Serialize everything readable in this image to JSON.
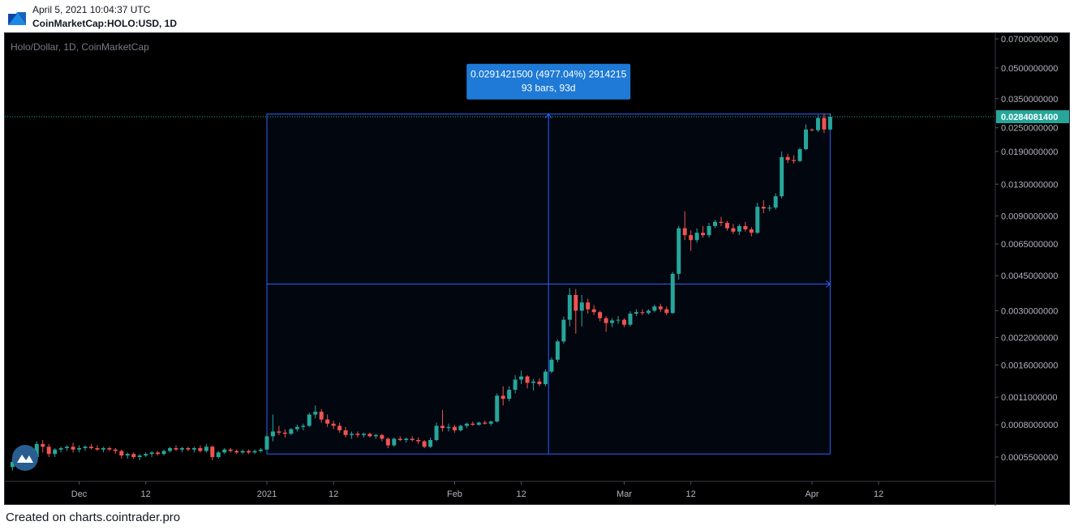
{
  "header": {
    "timestamp": "April 5, 2021 10:04:37 UTC",
    "symbol": "CoinMarketCap:HOLO:USD, 1D"
  },
  "footer": {
    "text": "Created on charts.cointrader.pro"
  },
  "chart_data": {
    "type": "candlestick",
    "title": "Holo/Dollar, 1D, CoinMarketCap",
    "scale": "log",
    "grid": false,
    "x_start_date": "2020-11-20",
    "y_ticks": [
      "0.0700000000",
      "0.0500000000",
      "0.0350000000",
      "0.0250000000",
      "0.0190000000",
      "0.0130000000",
      "0.0090000000",
      "0.0065000000",
      "0.0045000000",
      "0.0030000000",
      "0.0022000000",
      "0.0016000000",
      "0.0011000000",
      "0.0008000000",
      "0.0005500000"
    ],
    "x_ticks": [
      {
        "label": "Dec",
        "date": "2020-12-01"
      },
      {
        "label": "12",
        "date": "2020-12-12"
      },
      {
        "label": "2021",
        "date": "2021-01-01"
      },
      {
        "label": "12",
        "date": "2021-01-12"
      },
      {
        "label": "Feb",
        "date": "2021-02-01"
      },
      {
        "label": "12",
        "date": "2021-02-12"
      },
      {
        "label": "Mar",
        "date": "2021-03-01"
      },
      {
        "label": "12",
        "date": "2021-03-12"
      },
      {
        "label": "Apr",
        "date": "2021-04-01"
      },
      {
        "label": "12",
        "date": "2021-04-12"
      }
    ],
    "last_price": "0.0284081400",
    "measure": {
      "label_line1": "0.0291421500 (4977.04%) 2914215",
      "label_line2": "93 bars, 93d",
      "start_date": "2021-01-01",
      "end_date": "2021-04-04",
      "low": 0.00057,
      "high": 0.0293
    },
    "colors": {
      "up": "#26a69a",
      "down": "#ef5350",
      "measure": "#2962ff",
      "label_bg": "#1e7ad6",
      "last_price": "#26a69a",
      "axis_text": "#b2b5be"
    },
    "candles": [
      {
        "date": "2020-11-20",
        "o": 0.00049,
        "h": 0.00054,
        "l": 0.00047,
        "c": 0.00052
      },
      {
        "date": "2020-11-21",
        "o": 0.00052,
        "h": 0.00056,
        "l": 0.00049,
        "c": 0.00051
      },
      {
        "date": "2020-11-22",
        "o": 0.00051,
        "h": 0.00055,
        "l": 0.00048,
        "c": 0.00053
      },
      {
        "date": "2020-11-23",
        "o": 0.00053,
        "h": 0.00058,
        "l": 0.00051,
        "c": 0.00055
      },
      {
        "date": "2020-11-24",
        "o": 0.00055,
        "h": 0.00066,
        "l": 0.00053,
        "c": 0.00064
      },
      {
        "date": "2020-11-25",
        "o": 0.00064,
        "h": 0.00067,
        "l": 0.00058,
        "c": 0.00062
      },
      {
        "date": "2020-11-26",
        "o": 0.00062,
        "h": 0.00064,
        "l": 0.00055,
        "c": 0.00057
      },
      {
        "date": "2020-11-27",
        "o": 0.00057,
        "h": 0.00061,
        "l": 0.00055,
        "c": 0.0006
      },
      {
        "date": "2020-11-28",
        "o": 0.0006,
        "h": 0.00062,
        "l": 0.00058,
        "c": 0.00061
      },
      {
        "date": "2020-11-29",
        "o": 0.00061,
        "h": 0.00063,
        "l": 0.00059,
        "c": 0.00062
      },
      {
        "date": "2020-11-30",
        "o": 0.00062,
        "h": 0.00065,
        "l": 0.00058,
        "c": 0.0006
      },
      {
        "date": "2020-12-01",
        "o": 0.0006,
        "h": 0.00063,
        "l": 0.00058,
        "c": 0.00061
      },
      {
        "date": "2020-12-02",
        "o": 0.00061,
        "h": 0.00063,
        "l": 0.00059,
        "c": 0.00062
      },
      {
        "date": "2020-12-03",
        "o": 0.00062,
        "h": 0.00064,
        "l": 0.0006,
        "c": 0.00061
      },
      {
        "date": "2020-12-04",
        "o": 0.00061,
        "h": 0.00063,
        "l": 0.00059,
        "c": 0.0006
      },
      {
        "date": "2020-12-05",
        "o": 0.0006,
        "h": 0.00062,
        "l": 0.00058,
        "c": 0.00061
      },
      {
        "date": "2020-12-06",
        "o": 0.00061,
        "h": 0.00062,
        "l": 0.00059,
        "c": 0.0006
      },
      {
        "date": "2020-12-07",
        "o": 0.0006,
        "h": 0.00061,
        "l": 0.00057,
        "c": 0.00059
      },
      {
        "date": "2020-12-08",
        "o": 0.00059,
        "h": 0.0006,
        "l": 0.00054,
        "c": 0.00056
      },
      {
        "date": "2020-12-09",
        "o": 0.00056,
        "h": 0.00058,
        "l": 0.00054,
        "c": 0.00057
      },
      {
        "date": "2020-12-10",
        "o": 0.00057,
        "h": 0.00058,
        "l": 0.00054,
        "c": 0.00055
      },
      {
        "date": "2020-12-11",
        "o": 0.00055,
        "h": 0.00057,
        "l": 0.00053,
        "c": 0.00056
      },
      {
        "date": "2020-12-12",
        "o": 0.00056,
        "h": 0.00058,
        "l": 0.00055,
        "c": 0.00057
      },
      {
        "date": "2020-12-13",
        "o": 0.00057,
        "h": 0.00059,
        "l": 0.00055,
        "c": 0.00058
      },
      {
        "date": "2020-12-14",
        "o": 0.00058,
        "h": 0.00059,
        "l": 0.00056,
        "c": 0.00057
      },
      {
        "date": "2020-12-15",
        "o": 0.00057,
        "h": 0.0006,
        "l": 0.00056,
        "c": 0.00059
      },
      {
        "date": "2020-12-16",
        "o": 0.00059,
        "h": 0.00062,
        "l": 0.00058,
        "c": 0.00061
      },
      {
        "date": "2020-12-17",
        "o": 0.00061,
        "h": 0.00063,
        "l": 0.00059,
        "c": 0.0006
      },
      {
        "date": "2020-12-18",
        "o": 0.0006,
        "h": 0.00062,
        "l": 0.00058,
        "c": 0.00061
      },
      {
        "date": "2020-12-19",
        "o": 0.00061,
        "h": 0.00062,
        "l": 0.00059,
        "c": 0.0006
      },
      {
        "date": "2020-12-20",
        "o": 0.0006,
        "h": 0.00062,
        "l": 0.00058,
        "c": 0.00061
      },
      {
        "date": "2020-12-21",
        "o": 0.00061,
        "h": 0.00063,
        "l": 0.00058,
        "c": 0.00059
      },
      {
        "date": "2020-12-22",
        "o": 0.00059,
        "h": 0.00064,
        "l": 0.00058,
        "c": 0.00062
      },
      {
        "date": "2020-12-23",
        "o": 0.00062,
        "h": 0.00063,
        "l": 0.00053,
        "c": 0.00055
      },
      {
        "date": "2020-12-24",
        "o": 0.00055,
        "h": 0.00059,
        "l": 0.00054,
        "c": 0.00058
      },
      {
        "date": "2020-12-25",
        "o": 0.00058,
        "h": 0.00061,
        "l": 0.00057,
        "c": 0.0006
      },
      {
        "date": "2020-12-26",
        "o": 0.0006,
        "h": 0.00061,
        "l": 0.00058,
        "c": 0.00059
      },
      {
        "date": "2020-12-27",
        "o": 0.00059,
        "h": 0.0006,
        "l": 0.00057,
        "c": 0.00058
      },
      {
        "date": "2020-12-28",
        "o": 0.00058,
        "h": 0.0006,
        "l": 0.00057,
        "c": 0.00059
      },
      {
        "date": "2020-12-29",
        "o": 0.00059,
        "h": 0.0006,
        "l": 0.00057,
        "c": 0.00058
      },
      {
        "date": "2020-12-30",
        "o": 0.00058,
        "h": 0.0006,
        "l": 0.00057,
        "c": 0.00059
      },
      {
        "date": "2020-12-31",
        "o": 0.00059,
        "h": 0.00061,
        "l": 0.00058,
        "c": 0.0006
      },
      {
        "date": "2021-01-01",
        "o": 0.0006,
        "h": 0.00072,
        "l": 0.00059,
        "c": 0.0007
      },
      {
        "date": "2021-01-02",
        "o": 0.0007,
        "h": 0.0009,
        "l": 0.00066,
        "c": 0.00074
      },
      {
        "date": "2021-01-03",
        "o": 0.00074,
        "h": 0.00079,
        "l": 0.00071,
        "c": 0.00073
      },
      {
        "date": "2021-01-04",
        "o": 0.00073,
        "h": 0.00076,
        "l": 0.00069,
        "c": 0.00072
      },
      {
        "date": "2021-01-05",
        "o": 0.00072,
        "h": 0.00077,
        "l": 0.00071,
        "c": 0.00076
      },
      {
        "date": "2021-01-06",
        "o": 0.00076,
        "h": 0.0008,
        "l": 0.00074,
        "c": 0.00078
      },
      {
        "date": "2021-01-07",
        "o": 0.00078,
        "h": 0.00081,
        "l": 0.00075,
        "c": 0.00079
      },
      {
        "date": "2021-01-08",
        "o": 0.00079,
        "h": 0.00092,
        "l": 0.00078,
        "c": 0.0009
      },
      {
        "date": "2021-01-09",
        "o": 0.0009,
        "h": 0.001,
        "l": 0.00086,
        "c": 0.00093
      },
      {
        "date": "2021-01-10",
        "o": 0.00093,
        "h": 0.00096,
        "l": 0.00082,
        "c": 0.00085
      },
      {
        "date": "2021-01-11",
        "o": 0.00085,
        "h": 0.0009,
        "l": 0.00078,
        "c": 0.00081
      },
      {
        "date": "2021-01-12",
        "o": 0.00081,
        "h": 0.00084,
        "l": 0.00076,
        "c": 0.00079
      },
      {
        "date": "2021-01-13",
        "o": 0.00079,
        "h": 0.00082,
        "l": 0.00073,
        "c": 0.00075
      },
      {
        "date": "2021-01-14",
        "o": 0.00075,
        "h": 0.00078,
        "l": 0.00069,
        "c": 0.00071
      },
      {
        "date": "2021-01-15",
        "o": 0.00071,
        "h": 0.00074,
        "l": 0.00068,
        "c": 0.00072
      },
      {
        "date": "2021-01-16",
        "o": 0.00072,
        "h": 0.00074,
        "l": 0.00069,
        "c": 0.00071
      },
      {
        "date": "2021-01-17",
        "o": 0.00071,
        "h": 0.00073,
        "l": 0.00069,
        "c": 0.00072
      },
      {
        "date": "2021-01-18",
        "o": 0.00072,
        "h": 0.00073,
        "l": 0.00069,
        "c": 0.0007
      },
      {
        "date": "2021-01-19",
        "o": 0.0007,
        "h": 0.00072,
        "l": 0.00068,
        "c": 0.00071
      },
      {
        "date": "2021-01-20",
        "o": 0.00071,
        "h": 0.00072,
        "l": 0.00066,
        "c": 0.00068
      },
      {
        "date": "2021-01-21",
        "o": 0.00068,
        "h": 0.00069,
        "l": 0.00061,
        "c": 0.00063
      },
      {
        "date": "2021-01-22",
        "o": 0.00063,
        "h": 0.00069,
        "l": 0.00062,
        "c": 0.00068
      },
      {
        "date": "2021-01-23",
        "o": 0.00068,
        "h": 0.0007,
        "l": 0.00066,
        "c": 0.00067
      },
      {
        "date": "2021-01-24",
        "o": 0.00067,
        "h": 0.00069,
        "l": 0.00065,
        "c": 0.00068
      },
      {
        "date": "2021-01-25",
        "o": 0.00068,
        "h": 0.0007,
        "l": 0.00066,
        "c": 0.00067
      },
      {
        "date": "2021-01-26",
        "o": 0.00067,
        "h": 0.00069,
        "l": 0.00064,
        "c": 0.00066
      },
      {
        "date": "2021-01-27",
        "o": 0.00066,
        "h": 0.00067,
        "l": 0.00061,
        "c": 0.00062
      },
      {
        "date": "2021-01-28",
        "o": 0.00062,
        "h": 0.00069,
        "l": 0.00061,
        "c": 0.00067
      },
      {
        "date": "2021-01-29",
        "o": 0.00067,
        "h": 0.00082,
        "l": 0.00066,
        "c": 0.00079
      },
      {
        "date": "2021-01-30",
        "o": 0.00079,
        "h": 0.00095,
        "l": 0.00074,
        "c": 0.00077
      },
      {
        "date": "2021-01-31",
        "o": 0.00077,
        "h": 0.00081,
        "l": 0.00074,
        "c": 0.00078
      },
      {
        "date": "2021-02-01",
        "o": 0.00078,
        "h": 0.0008,
        "l": 0.00073,
        "c": 0.00075
      },
      {
        "date": "2021-02-02",
        "o": 0.00075,
        "h": 0.0008,
        "l": 0.00074,
        "c": 0.00079
      },
      {
        "date": "2021-02-03",
        "o": 0.00079,
        "h": 0.00082,
        "l": 0.00077,
        "c": 0.00081
      },
      {
        "date": "2021-02-04",
        "o": 0.00081,
        "h": 0.00083,
        "l": 0.00079,
        "c": 0.0008
      },
      {
        "date": "2021-02-05",
        "o": 0.0008,
        "h": 0.00083,
        "l": 0.00079,
        "c": 0.00082
      },
      {
        "date": "2021-02-06",
        "o": 0.00082,
        "h": 0.00084,
        "l": 0.0008,
        "c": 0.00081
      },
      {
        "date": "2021-02-07",
        "o": 0.00081,
        "h": 0.00084,
        "l": 0.00079,
        "c": 0.00083
      },
      {
        "date": "2021-02-08",
        "o": 0.00083,
        "h": 0.00115,
        "l": 0.00082,
        "c": 0.00112
      },
      {
        "date": "2021-02-09",
        "o": 0.00112,
        "h": 0.00125,
        "l": 0.001,
        "c": 0.00108
      },
      {
        "date": "2021-02-10",
        "o": 0.00108,
        "h": 0.00125,
        "l": 0.00105,
        "c": 0.0012
      },
      {
        "date": "2021-02-11",
        "o": 0.0012,
        "h": 0.00142,
        "l": 0.00115,
        "c": 0.00135
      },
      {
        "date": "2021-02-12",
        "o": 0.00135,
        "h": 0.0015,
        "l": 0.00128,
        "c": 0.0014
      },
      {
        "date": "2021-02-13",
        "o": 0.0014,
        "h": 0.00142,
        "l": 0.00122,
        "c": 0.0013
      },
      {
        "date": "2021-02-14",
        "o": 0.0013,
        "h": 0.00136,
        "l": 0.00119,
        "c": 0.00132
      },
      {
        "date": "2021-02-15",
        "o": 0.00132,
        "h": 0.00137,
        "l": 0.00125,
        "c": 0.00128
      },
      {
        "date": "2021-02-16",
        "o": 0.00128,
        "h": 0.00152,
        "l": 0.00125,
        "c": 0.00148
      },
      {
        "date": "2021-02-17",
        "o": 0.00148,
        "h": 0.00175,
        "l": 0.00145,
        "c": 0.0017
      },
      {
        "date": "2021-02-18",
        "o": 0.0017,
        "h": 0.00215,
        "l": 0.00165,
        "c": 0.0021
      },
      {
        "date": "2021-02-19",
        "o": 0.0021,
        "h": 0.0028,
        "l": 0.00205,
        "c": 0.0027
      },
      {
        "date": "2021-02-20",
        "o": 0.0027,
        "h": 0.0039,
        "l": 0.0025,
        "c": 0.0036
      },
      {
        "date": "2021-02-21",
        "o": 0.0036,
        "h": 0.00385,
        "l": 0.0023,
        "c": 0.003
      },
      {
        "date": "2021-02-22",
        "o": 0.003,
        "h": 0.0036,
        "l": 0.0025,
        "c": 0.0033
      },
      {
        "date": "2021-02-23",
        "o": 0.0033,
        "h": 0.00345,
        "l": 0.0029,
        "c": 0.00305
      },
      {
        "date": "2021-02-24",
        "o": 0.00305,
        "h": 0.0032,
        "l": 0.00285,
        "c": 0.00295
      },
      {
        "date": "2021-02-25",
        "o": 0.00295,
        "h": 0.003,
        "l": 0.00265,
        "c": 0.00275
      },
      {
        "date": "2021-02-26",
        "o": 0.00275,
        "h": 0.00282,
        "l": 0.00235,
        "c": 0.0026
      },
      {
        "date": "2021-02-27",
        "o": 0.0026,
        "h": 0.00275,
        "l": 0.00248,
        "c": 0.00268
      },
      {
        "date": "2021-02-28",
        "o": 0.00268,
        "h": 0.00282,
        "l": 0.00258,
        "c": 0.0027
      },
      {
        "date": "2021-03-01",
        "o": 0.0027,
        "h": 0.00275,
        "l": 0.00248,
        "c": 0.00255
      },
      {
        "date": "2021-03-02",
        "o": 0.00255,
        "h": 0.00298,
        "l": 0.0025,
        "c": 0.0029
      },
      {
        "date": "2021-03-03",
        "o": 0.0029,
        "h": 0.00305,
        "l": 0.00282,
        "c": 0.00295
      },
      {
        "date": "2021-03-04",
        "o": 0.00295,
        "h": 0.00305,
        "l": 0.00285,
        "c": 0.00292
      },
      {
        "date": "2021-03-05",
        "o": 0.00292,
        "h": 0.00305,
        "l": 0.00287,
        "c": 0.003
      },
      {
        "date": "2021-03-06",
        "o": 0.003,
        "h": 0.00322,
        "l": 0.00295,
        "c": 0.00315
      },
      {
        "date": "2021-03-07",
        "o": 0.00315,
        "h": 0.00325,
        "l": 0.00295,
        "c": 0.00305
      },
      {
        "date": "2021-03-08",
        "o": 0.00305,
        "h": 0.00315,
        "l": 0.00285,
        "c": 0.00292
      },
      {
        "date": "2021-03-09",
        "o": 0.00292,
        "h": 0.0047,
        "l": 0.0029,
        "c": 0.0046
      },
      {
        "date": "2021-03-10",
        "o": 0.0046,
        "h": 0.008,
        "l": 0.0043,
        "c": 0.0078
      },
      {
        "date": "2021-03-11",
        "o": 0.0078,
        "h": 0.0095,
        "l": 0.0068,
        "c": 0.0072
      },
      {
        "date": "2021-03-12",
        "o": 0.0072,
        "h": 0.0076,
        "l": 0.006,
        "c": 0.0068
      },
      {
        "date": "2021-03-13",
        "o": 0.0068,
        "h": 0.0078,
        "l": 0.0066,
        "c": 0.0074
      },
      {
        "date": "2021-03-14",
        "o": 0.0074,
        "h": 0.008,
        "l": 0.007,
        "c": 0.0072
      },
      {
        "date": "2021-03-15",
        "o": 0.0072,
        "h": 0.0083,
        "l": 0.007,
        "c": 0.008
      },
      {
        "date": "2021-03-16",
        "o": 0.008,
        "h": 0.0086,
        "l": 0.0078,
        "c": 0.0084
      },
      {
        "date": "2021-03-17",
        "o": 0.0084,
        "h": 0.0089,
        "l": 0.008,
        "c": 0.0083
      },
      {
        "date": "2021-03-18",
        "o": 0.0083,
        "h": 0.0085,
        "l": 0.0076,
        "c": 0.0078
      },
      {
        "date": "2021-03-19",
        "o": 0.0078,
        "h": 0.0082,
        "l": 0.0073,
        "c": 0.0075
      },
      {
        "date": "2021-03-20",
        "o": 0.0075,
        "h": 0.0082,
        "l": 0.0072,
        "c": 0.008
      },
      {
        "date": "2021-03-21",
        "o": 0.008,
        "h": 0.0084,
        "l": 0.0075,
        "c": 0.0077
      },
      {
        "date": "2021-03-22",
        "o": 0.0077,
        "h": 0.0079,
        "l": 0.0071,
        "c": 0.0074
      },
      {
        "date": "2021-03-23",
        "o": 0.0074,
        "h": 0.0105,
        "l": 0.0073,
        "c": 0.01
      },
      {
        "date": "2021-03-24",
        "o": 0.01,
        "h": 0.0108,
        "l": 0.0093,
        "c": 0.0098
      },
      {
        "date": "2021-03-25",
        "o": 0.0098,
        "h": 0.0102,
        "l": 0.0095,
        "c": 0.0099
      },
      {
        "date": "2021-03-26",
        "o": 0.0099,
        "h": 0.0117,
        "l": 0.0097,
        "c": 0.0113
      },
      {
        "date": "2021-03-27",
        "o": 0.0113,
        "h": 0.019,
        "l": 0.011,
        "c": 0.0178
      },
      {
        "date": "2021-03-28",
        "o": 0.0178,
        "h": 0.0185,
        "l": 0.0166,
        "c": 0.0172
      },
      {
        "date": "2021-03-29",
        "o": 0.0172,
        "h": 0.0182,
        "l": 0.0165,
        "c": 0.017
      },
      {
        "date": "2021-03-30",
        "o": 0.017,
        "h": 0.0198,
        "l": 0.0168,
        "c": 0.0195
      },
      {
        "date": "2021-03-31",
        "o": 0.0195,
        "h": 0.026,
        "l": 0.0193,
        "c": 0.0245
      },
      {
        "date": "2021-04-01",
        "o": 0.0245,
        "h": 0.0248,
        "l": 0.024,
        "c": 0.0243
      },
      {
        "date": "2021-04-02",
        "o": 0.0243,
        "h": 0.029,
        "l": 0.0238,
        "c": 0.028
      },
      {
        "date": "2021-04-03",
        "o": 0.028,
        "h": 0.0295,
        "l": 0.0235,
        "c": 0.0245
      },
      {
        "date": "2021-04-04",
        "o": 0.0245,
        "h": 0.0295,
        "l": 0.0242,
        "c": 0.0284
      }
    ]
  }
}
